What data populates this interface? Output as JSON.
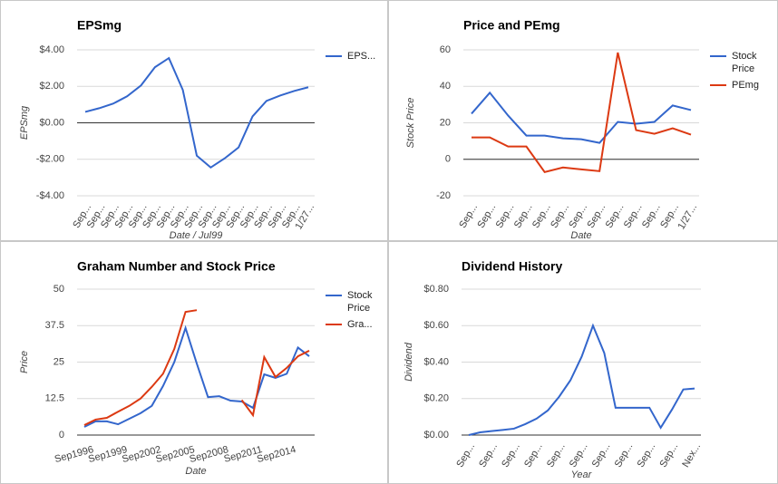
{
  "chart_data": [
    {
      "type": "line",
      "title": "EPSmg",
      "y_label": "EPSmg",
      "x_label": "Date / Jul99",
      "categories": [
        "Sep...",
        "Sep...",
        "Sep...",
        "Sep...",
        "Sep...",
        "Sep...",
        "Sep...",
        "Sep...",
        "Sep...",
        "Sep...",
        "Sep...",
        "Sep...",
        "Sep...",
        "Sep...",
        "Sep...",
        "Sep...",
        "1/27..."
      ],
      "series": [
        {
          "name": "EPS...",
          "color": "#3366cc",
          "values": [
            0.6,
            0.8,
            1.05,
            1.45,
            2.05,
            3.05,
            3.55,
            1.8,
            -1.8,
            -2.45,
            -1.95,
            -1.35,
            0.35,
            1.2,
            1.5,
            1.75,
            1.95
          ]
        }
      ],
      "ylim": [
        -4,
        4
      ],
      "yticks": [
        {
          "value": 4,
          "label": "$4.00"
        },
        {
          "value": 2,
          "label": "$2.00"
        },
        {
          "value": 0,
          "label": "$0.00"
        },
        {
          "value": -2,
          "label": "-$2.00"
        },
        {
          "value": -4,
          "label": "-$4.00"
        }
      ],
      "grid": true
    },
    {
      "type": "line",
      "title": "Price and PEmg",
      "y_label": "Stock Price",
      "x_label": "Date",
      "categories": [
        "Sep...",
        "Sep...",
        "Sep...",
        "Sep...",
        "Sep...",
        "Sep...",
        "Sep...",
        "Sep...",
        "Sep...",
        "Sep...",
        "Sep...",
        "Sep...",
        "1/27..."
      ],
      "series": [
        {
          "name": "Stock Price",
          "color": "#3366cc",
          "values": [
            25,
            36.5,
            24,
            13,
            13,
            11.5,
            11,
            9,
            20.5,
            19.5,
            20.5,
            29.5,
            27
          ]
        },
        {
          "name": "PEmg",
          "color": "#dc3912",
          "values": [
            12,
            12,
            7,
            7,
            -7,
            -4.5,
            -5.5,
            -6.5,
            58.5,
            16,
            14,
            17,
            13.5
          ]
        }
      ],
      "ylim": [
        -20,
        60
      ],
      "yticks": [
        60,
        40,
        20,
        0,
        -20
      ],
      "grid": true
    },
    {
      "type": "line",
      "title": "Graham Number and Stock Price",
      "y_label": "Price",
      "x_label": "Date",
      "categories": [
        "Sep1996",
        null,
        null,
        "Sep1999",
        null,
        null,
        "Sep2002",
        null,
        null,
        "Sep2005",
        null,
        null,
        "Sep2008",
        null,
        null,
        "Sep2011",
        null,
        null,
        "Sep2014",
        null,
        null
      ],
      "series": [
        {
          "name": "Stock Price",
          "color": "#3366cc",
          "values": [
            2.8,
            4.7,
            4.7,
            3.7,
            5.6,
            7.5,
            10,
            16.8,
            25,
            36.7,
            24.5,
            13,
            13.3,
            11.8,
            11.5,
            9.3,
            20.8,
            19.6,
            21,
            30,
            27
          ]
        },
        {
          "name": "Gra...",
          "color": "#dc3912",
          "values": [
            3.4,
            5.3,
            5.9,
            8,
            10,
            12.5,
            16.5,
            21,
            29.5,
            42.2,
            42.8,
            null,
            null,
            null,
            12,
            6.8,
            26.7,
            19.9,
            23,
            27,
            28.9
          ]
        }
      ],
      "ylim": [
        0,
        50
      ],
      "yticks": [
        50,
        37.5,
        25,
        12.5,
        0
      ],
      "grid": true
    },
    {
      "type": "line",
      "title": "Dividend History",
      "y_label": "Dividend",
      "x_label": "Year",
      "categories": [
        "Sep...",
        null,
        "Sep...",
        null,
        "Sep...",
        null,
        "Sep...",
        null,
        "Sep...",
        null,
        "Sep...",
        null,
        "Sep...",
        null,
        "Sep...",
        null,
        "Sep...",
        null,
        "Sep...",
        null,
        "Nex..."
      ],
      "series": [
        {
          "name": "Dividend",
          "color": "#3366cc",
          "values": [
            0,
            0.015,
            0.022,
            0.028,
            0.035,
            0.06,
            0.09,
            0.135,
            0.21,
            0.3,
            0.43,
            0.6,
            0.45,
            0.15,
            0.15,
            0.15,
            0.15,
            0.04,
            0.14,
            0.25,
            0.255
          ]
        }
      ],
      "ylim": [
        0,
        0.8
      ],
      "yticks": [
        {
          "value": 0.8,
          "label": "$0.80"
        },
        {
          "value": 0.6,
          "label": "$0.60"
        },
        {
          "value": 0.4,
          "label": "$0.40"
        },
        {
          "value": 0.2,
          "label": "$0.20"
        },
        {
          "value": 0,
          "label": "$0.00"
        }
      ],
      "grid": true
    }
  ]
}
